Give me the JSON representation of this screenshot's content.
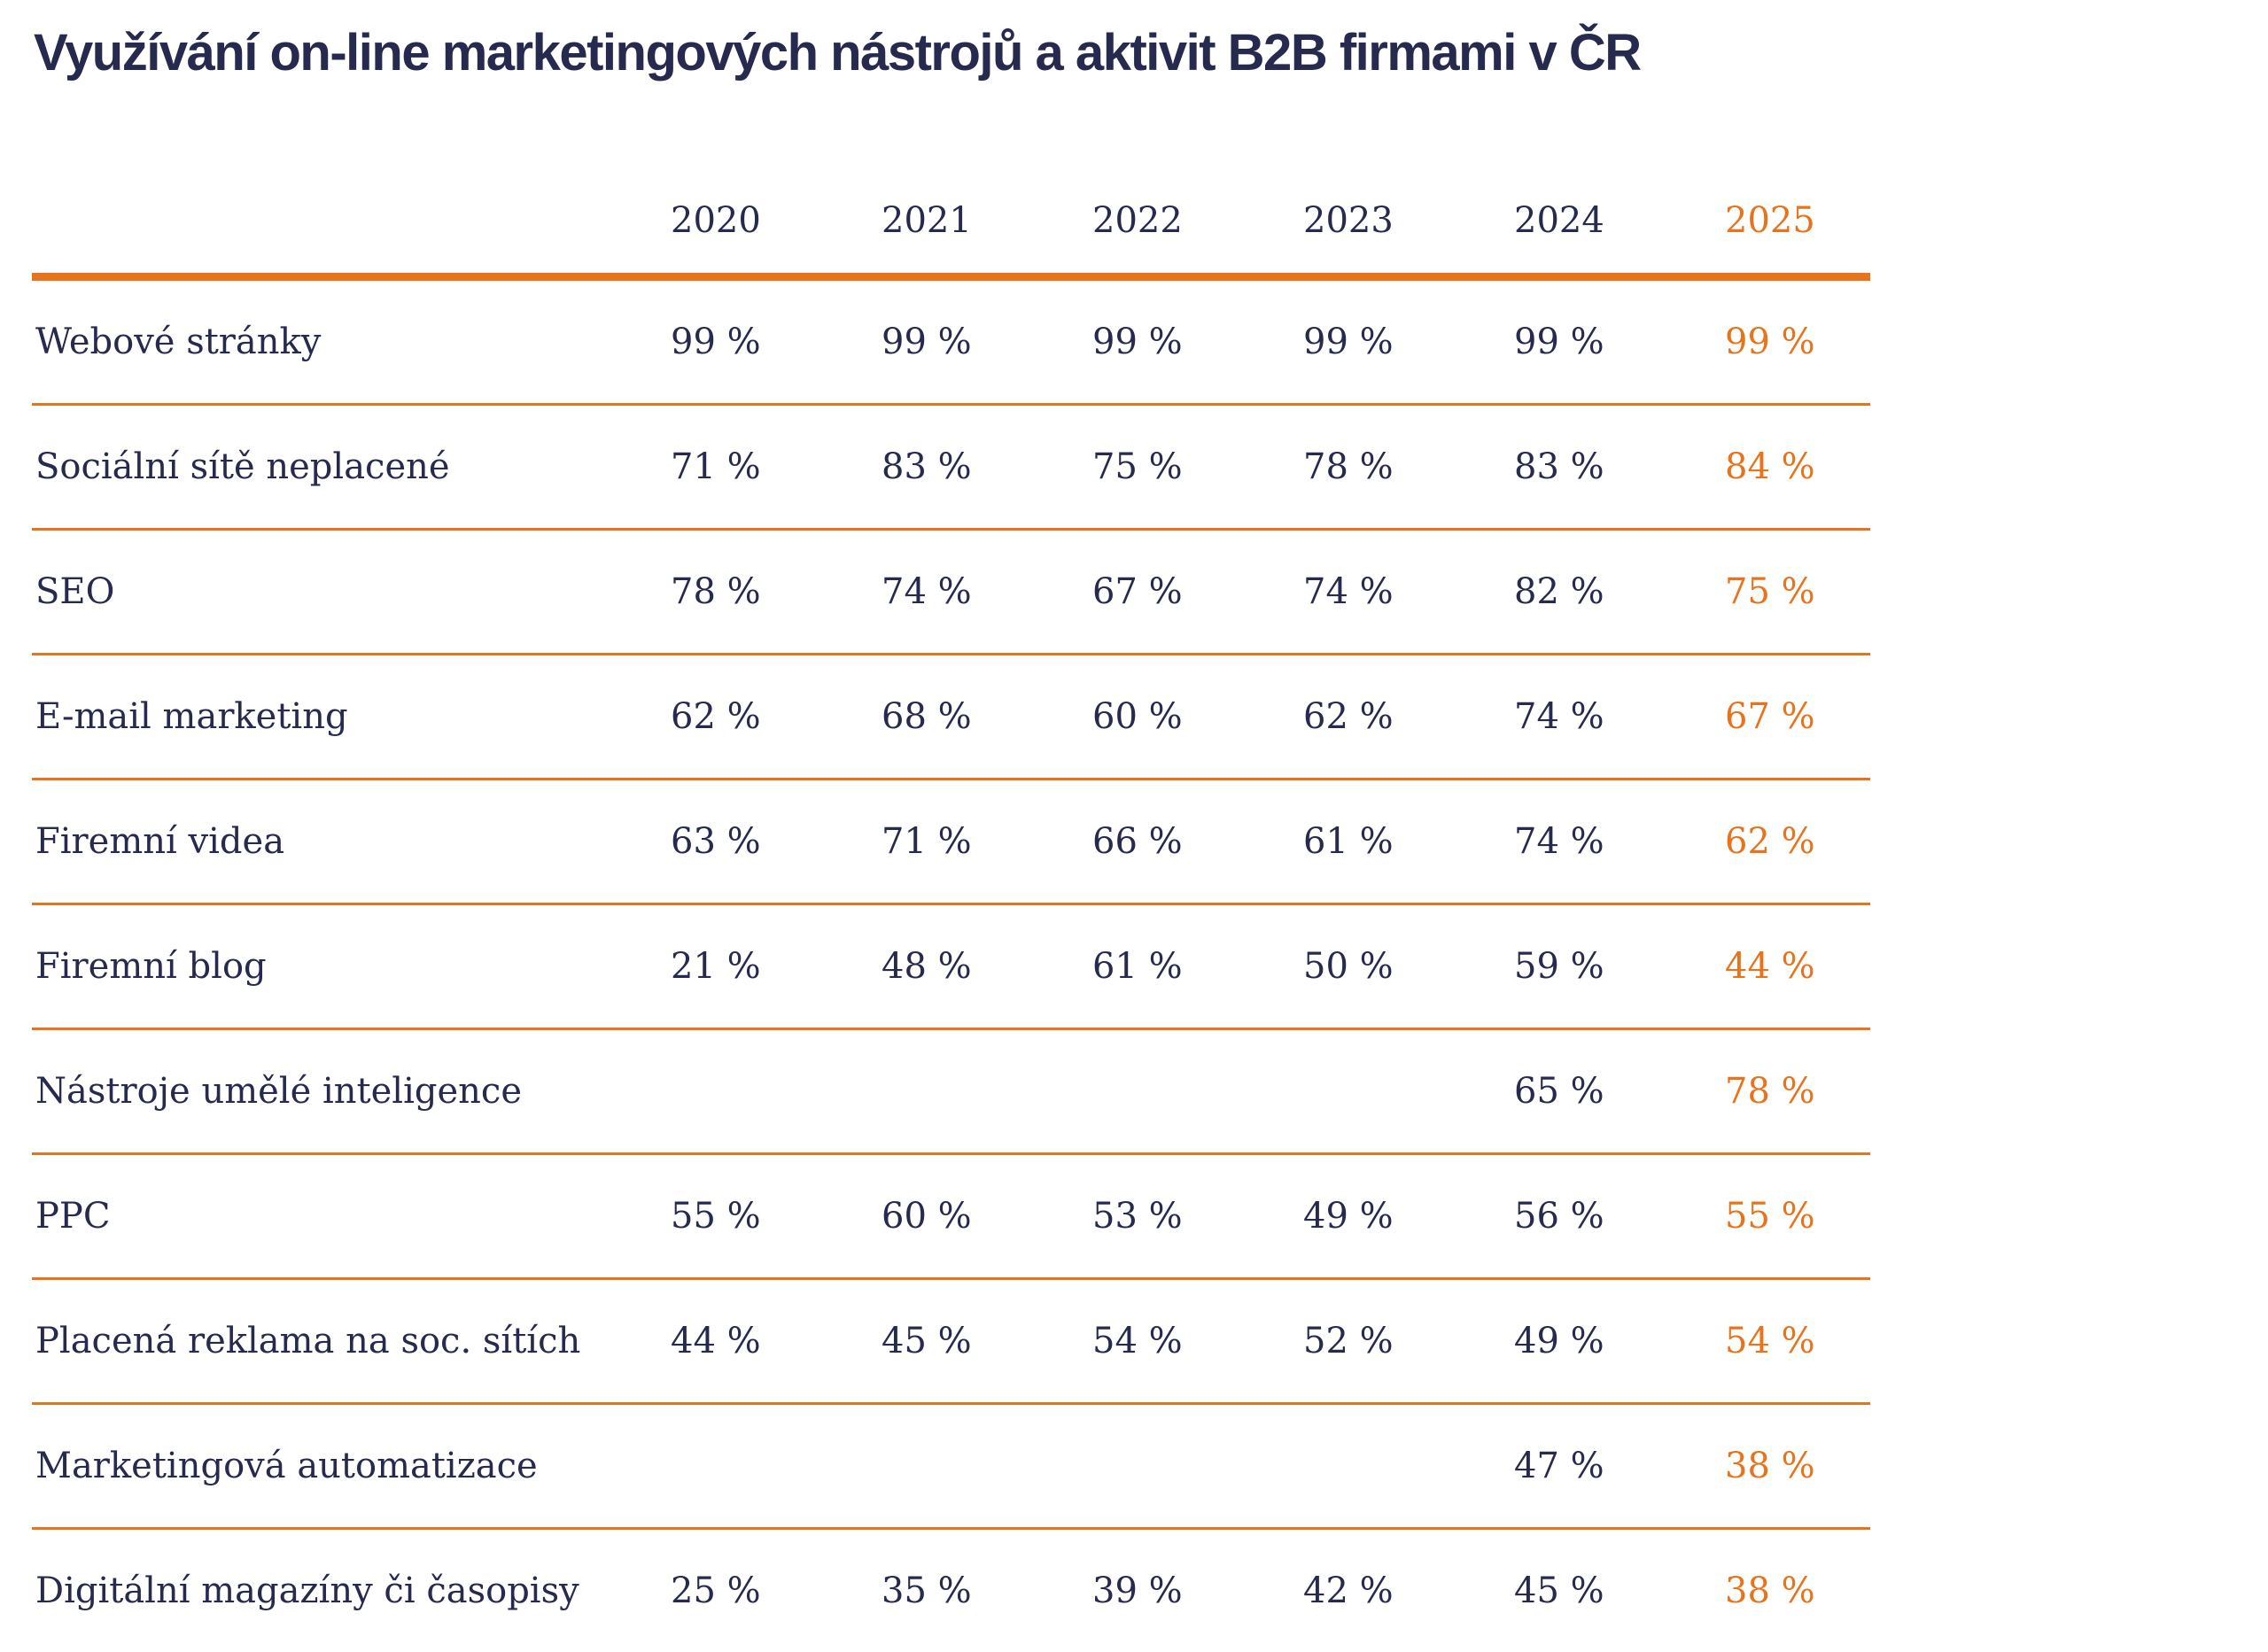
{
  "title": "Využívání on-line marketingových nástrojů a aktivit B2B firmami v ČR",
  "colors": {
    "text": "#262a4f",
    "accent": "#e8731d"
  },
  "chart_data": {
    "type": "table",
    "title": "Využívání on-line marketingových nástrojů a aktivit B2B firmami v ČR",
    "unit": "%",
    "columns": [
      "2020",
      "2021",
      "2022",
      "2023",
      "2024",
      "2025"
    ],
    "highlight_column": "2025",
    "rows": [
      {
        "label": "Webové stránky",
        "values": [
          "99 %",
          "99 %",
          "99 %",
          "99 %",
          "99 %",
          "99 %"
        ]
      },
      {
        "label": "Sociální sítě neplacené",
        "values": [
          "71 %",
          "83 %",
          "75 %",
          "78 %",
          "83 %",
          "84 %"
        ]
      },
      {
        "label": "SEO",
        "values": [
          "78 %",
          "74 %",
          "67 %",
          "74 %",
          "82 %",
          "75 %"
        ]
      },
      {
        "label": "E-mail marketing",
        "values": [
          "62 %",
          "68 %",
          "60 %",
          "62 %",
          "74 %",
          "67 %"
        ]
      },
      {
        "label": "Firemní videa",
        "values": [
          "63 %",
          "71 %",
          "66 %",
          "61 %",
          "74 %",
          "62 %"
        ]
      },
      {
        "label": "Firemní blog",
        "values": [
          "21 %",
          "48 %",
          "61 %",
          "50 %",
          "59 %",
          "44 %"
        ]
      },
      {
        "label": "Nástroje umělé inteligence",
        "values": [
          "",
          "",
          "",
          "",
          "65 %",
          "78 %"
        ]
      },
      {
        "label": "PPC",
        "values": [
          "55 %",
          "60 %",
          "53 %",
          "49 %",
          "56 %",
          "55 %"
        ]
      },
      {
        "label": "Placená reklama na soc. sítích",
        "values": [
          "44 %",
          "45 %",
          "54 %",
          "52 %",
          "49 %",
          "54 %"
        ]
      },
      {
        "label": "Marketingová automatizace",
        "values": [
          "",
          "",
          "",
          "",
          "47 %",
          "38 %"
        ]
      },
      {
        "label": "Digitální magazíny či časopisy",
        "values": [
          "25 %",
          "35 %",
          "39 %",
          "42 %",
          "45 %",
          "38 %"
        ]
      }
    ]
  }
}
